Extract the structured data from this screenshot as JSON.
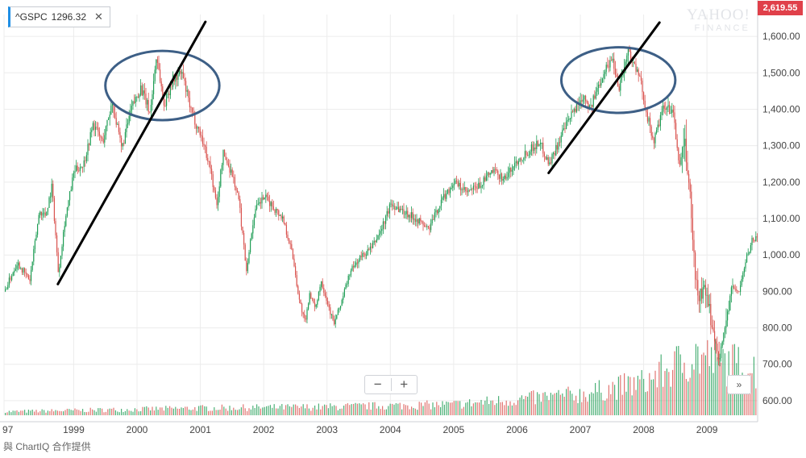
{
  "header": {
    "symbol": "^GSPC",
    "last": "1296.32",
    "close_glyph": "✕",
    "badge": "2,619.55"
  },
  "watermark": {
    "line1": "YAHOO!",
    "line2": "FINANCE"
  },
  "controls": {
    "zoom_out": "−",
    "zoom_in": "+",
    "scroll": "»"
  },
  "footer": {
    "credit": "與 ChartIQ 合作提供"
  },
  "colors": {
    "up": "#1f9d55",
    "down": "#d9534f",
    "grid": "#ececec",
    "circle": "#3d5f86",
    "trend": "#000000"
  },
  "chart_data": {
    "type": "candlestick",
    "y_ticks": [
      "600.00",
      "700.00",
      "800.00",
      "900.00",
      "1,000.00",
      "1,100.00",
      "1,200.00",
      "1,300.00",
      "1,400.00",
      "1,500.00",
      "1,600.00"
    ],
    "x_ticks": [
      "97",
      "1999",
      "2000",
      "2001",
      "2002",
      "2003",
      "2004",
      "2005",
      "2006",
      "2007",
      "2008",
      "2009"
    ],
    "x_tick_years": [
      1997.9,
      1999,
      2000,
      2001,
      2002,
      2003,
      2004,
      2005,
      2006,
      2007,
      2008,
      2009
    ],
    "x_range": [
      1997.9,
      2009.8
    ],
    "y_range": [
      560,
      1660
    ],
    "price_path": [
      [
        1997.9,
        900
      ],
      [
        1998.1,
        980
      ],
      [
        1998.3,
        930
      ],
      [
        1998.45,
        1120
      ],
      [
        1998.55,
        1110
      ],
      [
        1998.65,
        1190
      ],
      [
        1998.75,
        950
      ],
      [
        1998.85,
        1090
      ],
      [
        1999.0,
        1230
      ],
      [
        1999.15,
        1250
      ],
      [
        1999.3,
        1360
      ],
      [
        1999.45,
        1310
      ],
      [
        1999.6,
        1420
      ],
      [
        1999.75,
        1290
      ],
      [
        1999.9,
        1400
      ],
      [
        2000.05,
        1460
      ],
      [
        2000.2,
        1390
      ],
      [
        2000.3,
        1550
      ],
      [
        2000.42,
        1410
      ],
      [
        2000.55,
        1480
      ],
      [
        2000.7,
        1500
      ],
      [
        2000.85,
        1390
      ],
      [
        2001.0,
        1330
      ],
      [
        2001.15,
        1240
      ],
      [
        2001.25,
        1130
      ],
      [
        2001.35,
        1280
      ],
      [
        2001.5,
        1220
      ],
      [
        2001.6,
        1150
      ],
      [
        2001.72,
        960
      ],
      [
        2001.85,
        1120
      ],
      [
        2002.0,
        1160
      ],
      [
        2002.15,
        1130
      ],
      [
        2002.3,
        1100
      ],
      [
        2002.45,
        1000
      ],
      [
        2002.55,
        880
      ],
      [
        2002.65,
        810
      ],
      [
        2002.72,
        900
      ],
      [
        2002.8,
        850
      ],
      [
        2002.9,
        930
      ],
      [
        2003.0,
        870
      ],
      [
        2003.1,
        810
      ],
      [
        2003.2,
        860
      ],
      [
        2003.35,
        950
      ],
      [
        2003.5,
        990
      ],
      [
        2003.7,
        1020
      ],
      [
        2003.85,
        1070
      ],
      [
        2004.0,
        1140
      ],
      [
        2004.2,
        1120
      ],
      [
        2004.4,
        1100
      ],
      [
        2004.6,
        1070
      ],
      [
        2004.8,
        1150
      ],
      [
        2005.0,
        1200
      ],
      [
        2005.2,
        1170
      ],
      [
        2005.4,
        1190
      ],
      [
        2005.6,
        1230
      ],
      [
        2005.8,
        1210
      ],
      [
        2006.0,
        1260
      ],
      [
        2006.2,
        1290
      ],
      [
        2006.35,
        1310
      ],
      [
        2006.5,
        1250
      ],
      [
        2006.7,
        1330
      ],
      [
        2006.9,
        1400
      ],
      [
        2007.05,
        1440
      ],
      [
        2007.15,
        1400
      ],
      [
        2007.35,
        1500
      ],
      [
        2007.5,
        1540
      ],
      [
        2007.6,
        1460
      ],
      [
        2007.75,
        1560
      ],
      [
        2007.85,
        1520
      ],
      [
        2007.95,
        1470
      ],
      [
        2008.05,
        1380
      ],
      [
        2008.15,
        1310
      ],
      [
        2008.3,
        1400
      ],
      [
        2008.45,
        1400
      ],
      [
        2008.55,
        1250
      ],
      [
        2008.65,
        1290
      ],
      [
        2008.72,
        1180
      ],
      [
        2008.78,
        1000
      ],
      [
        2008.85,
        880
      ],
      [
        2008.95,
        900
      ],
      [
        2009.05,
        830
      ],
      [
        2009.12,
        760
      ],
      [
        2009.2,
        720
      ],
      [
        2009.3,
        830
      ],
      [
        2009.4,
        910
      ],
      [
        2009.5,
        900
      ],
      [
        2009.6,
        980
      ],
      [
        2009.7,
        1040
      ],
      [
        2009.8,
        1050
      ]
    ],
    "volume_path": [
      [
        1997.9,
        0.06
      ],
      [
        2001.0,
        0.12
      ],
      [
        2003.0,
        0.14
      ],
      [
        2005.0,
        0.18
      ],
      [
        2007.0,
        0.35
      ],
      [
        2008.0,
        0.55
      ],
      [
        2008.8,
        1.0
      ],
      [
        2009.2,
        0.9
      ],
      [
        2009.8,
        0.75
      ]
    ],
    "annotations": {
      "ellipses": [
        {
          "center": [
            2000.4,
            1465
          ],
          "rx_years": 0.9,
          "ry_price": 95
        },
        {
          "center": [
            2007.6,
            1480
          ],
          "rx_years": 0.9,
          "ry_price": 90
        }
      ],
      "trendlines": [
        {
          "from": [
            1998.75,
            920
          ],
          "to": [
            2001.08,
            1640
          ]
        },
        {
          "from": [
            2006.5,
            1225
          ],
          "to": [
            2008.25,
            1638
          ]
        }
      ]
    }
  }
}
